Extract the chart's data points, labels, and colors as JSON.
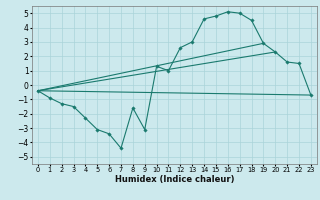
{
  "xlabel": "Humidex (Indice chaleur)",
  "bg_color": "#cce9ed",
  "grid_color": "#aad4d9",
  "line_color": "#1a7a6e",
  "xlim": [
    -0.5,
    23.5
  ],
  "ylim": [
    -5.5,
    5.5
  ],
  "yticks": [
    -5,
    -4,
    -3,
    -2,
    -1,
    0,
    1,
    2,
    3,
    4,
    5
  ],
  "xticks": [
    0,
    1,
    2,
    3,
    4,
    5,
    6,
    7,
    8,
    9,
    10,
    11,
    12,
    13,
    14,
    15,
    16,
    17,
    18,
    19,
    20,
    21,
    22,
    23
  ],
  "series_jagged": {
    "x": [
      0,
      1,
      2,
      3,
      4,
      5,
      6,
      7,
      8,
      9,
      10,
      11,
      12,
      13,
      14,
      15,
      16,
      17,
      18,
      19,
      20,
      21,
      22,
      23
    ],
    "y": [
      -0.4,
      -0.9,
      -1.3,
      -1.5,
      -2.3,
      -3.1,
      -3.4,
      -4.4,
      -1.6,
      -3.1,
      1.3,
      1.0,
      2.6,
      3.0,
      4.6,
      4.8,
      5.1,
      5.0,
      4.5,
      2.9,
      2.3,
      1.6,
      1.5,
      -0.7
    ]
  },
  "line_flat": {
    "x": [
      0,
      23
    ],
    "y": [
      -0.4,
      -0.7
    ]
  },
  "line_upper": {
    "x": [
      0,
      19
    ],
    "y": [
      -0.4,
      2.9
    ]
  },
  "line_mid": {
    "x": [
      0,
      20
    ],
    "y": [
      -0.4,
      2.3
    ]
  }
}
